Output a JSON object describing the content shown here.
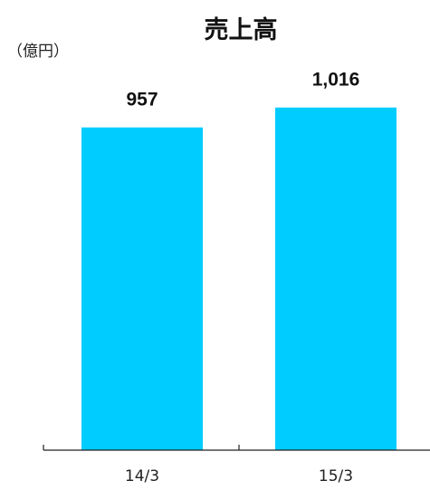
{
  "chart_data": {
    "type": "bar",
    "title": "売上高",
    "unit_label": "（億円）",
    "categories": [
      "14/3",
      "15/3"
    ],
    "values": [
      957,
      1016
    ],
    "value_labels": [
      "957",
      "1,016"
    ],
    "ylim": [
      0,
      1120
    ],
    "grid": false,
    "bar_color": "#00CCFF",
    "axis_color": "#222222"
  }
}
